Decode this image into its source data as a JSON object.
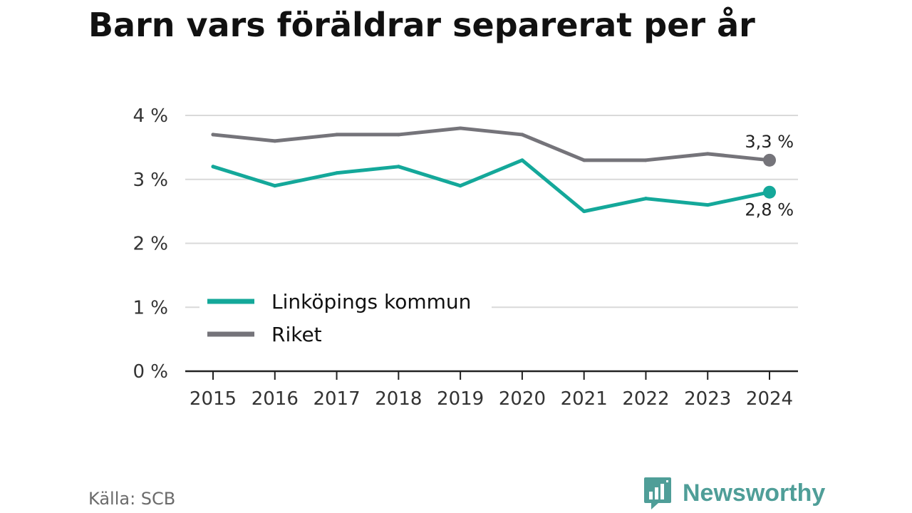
{
  "title": "Barn vars föräldrar separerat per år",
  "source": "Källa: SCB",
  "brand": {
    "name": "Newsworthy",
    "icon": "newsworthy-logo-icon",
    "color": "#4f9e98"
  },
  "chart_data": {
    "type": "line",
    "title": "Barn vars föräldrar separerat per år",
    "x": [
      "2015",
      "2016",
      "2017",
      "2018",
      "2019",
      "2020",
      "2021",
      "2022",
      "2023",
      "2024"
    ],
    "ylim": [
      0,
      4
    ],
    "yticks": [
      0,
      1,
      2,
      3,
      4
    ],
    "ytick_labels": [
      "0 %",
      "1 %",
      "2 %",
      "3 %",
      "4 %"
    ],
    "grid": true,
    "legend": "bottom-left",
    "series": [
      {
        "name": "Linköpings kommun",
        "color": "#14a89a",
        "values": [
          3.2,
          2.9,
          3.1,
          3.2,
          2.9,
          3.3,
          2.5,
          2.7,
          2.6,
          2.8
        ],
        "end_label": "2,8 %"
      },
      {
        "name": "Riket",
        "color": "#75747a",
        "values": [
          3.7,
          3.6,
          3.7,
          3.7,
          3.8,
          3.7,
          3.3,
          3.3,
          3.4,
          3.3
        ],
        "end_label": "3,3 %"
      }
    ]
  }
}
